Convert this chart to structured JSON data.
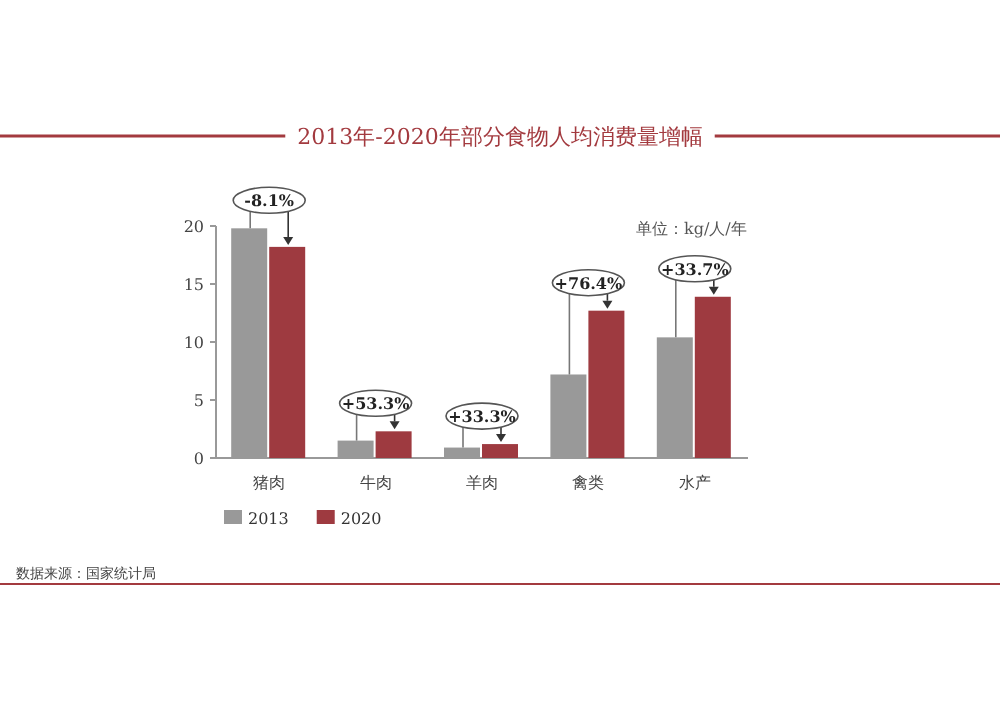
{
  "chart_data": {
    "type": "bar",
    "title": "2013年-2020年部分食物人均消费量增幅",
    "subtitle": "单位：kg/人/年",
    "categories": [
      "猪肉",
      "牛肉",
      "羊肉",
      "禽类",
      "水产"
    ],
    "series": [
      {
        "name": "2013",
        "color": "#999999",
        "values": [
          19.8,
          1.5,
          0.9,
          7.2,
          10.4
        ]
      },
      {
        "name": "2020",
        "color": "#9e3a40",
        "values": [
          18.2,
          2.3,
          1.2,
          12.7,
          13.9
        ]
      }
    ],
    "ylim": [
      0,
      20
    ],
    "yticks": [
      0,
      5,
      10,
      15,
      20
    ],
    "grid": false,
    "legend": "bottom left",
    "annotations": [
      {
        "text": "-8.1%",
        "x": "猪肉",
        "y": 18.2
      },
      {
        "text": "+53.3%",
        "x": "牛肉",
        "y": 2.3
      },
      {
        "text": "+33.3%",
        "x": "羊肉",
        "y": 1.2
      },
      {
        "text": "+76.4%",
        "x": "禽类",
        "y": 12.7
      },
      {
        "text": "+33.7%",
        "x": "水产",
        "y": 13.9
      },
      "数据来源：国家统计局"
    ]
  }
}
